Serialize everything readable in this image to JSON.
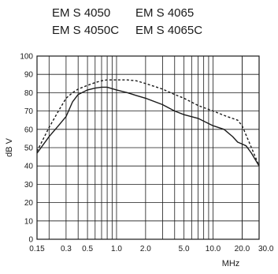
{
  "models": [
    "EM S 4050",
    "EM S 4065",
    "EM S 4050C",
    "EM S 4065C"
  ],
  "chart_data": {
    "type": "line",
    "x_scale": "log",
    "xlim": [
      0.15,
      30.0
    ],
    "ylim": [
      0,
      100
    ],
    "xlabel": "MHz",
    "ylabel": "dB  V",
    "x_ticks": [
      0.15,
      0.3,
      0.5,
      1.0,
      2.0,
      5.0,
      10.0,
      20.0,
      30.0
    ],
    "x_tick_labels": [
      "0.15",
      "0.3",
      "0.5",
      "1.0",
      "2.0",
      "5.0",
      "10.0",
      "20.0",
      "30.0"
    ],
    "y_ticks": [
      0,
      10,
      20,
      30,
      40,
      50,
      60,
      70,
      80,
      90,
      100
    ],
    "y_tick_labels": [
      "0",
      "10",
      "20",
      "30",
      "40",
      "50",
      "60",
      "70",
      "80",
      "90",
      "100"
    ],
    "grid": true,
    "series": [
      {
        "style": "dashed",
        "color": "#1a1a1a",
        "x": [
          0.15,
          0.2,
          0.25,
          0.3,
          0.35,
          0.4,
          0.5,
          0.6,
          0.7,
          0.8,
          1.0,
          1.3,
          1.6,
          2.0,
          3.0,
          4.0,
          5.0,
          7.0,
          10.0,
          14.0,
          18.0,
          20.0,
          25.0,
          30.0
        ],
        "y": [
          48,
          61,
          70,
          77,
          80,
          82,
          84,
          85.5,
          86.5,
          87,
          87,
          87,
          86.5,
          85,
          82,
          79,
          77,
          73,
          70,
          67,
          65,
          62,
          50,
          40
        ]
      },
      {
        "style": "solid",
        "color": "#1a1a1a",
        "x": [
          0.15,
          0.2,
          0.25,
          0.3,
          0.35,
          0.4,
          0.5,
          0.6,
          0.7,
          0.8,
          1.0,
          1.3,
          1.6,
          2.0,
          3.0,
          4.0,
          5.0,
          7.0,
          10.0,
          13.0,
          16.0,
          18.0,
          20.0,
          22.0,
          25.0,
          30.0
        ],
        "y": [
          47,
          56,
          62,
          67,
          75,
          79,
          81.5,
          82.5,
          83,
          83,
          81.5,
          80,
          78.5,
          77,
          73.5,
          70,
          68,
          66,
          62,
          60,
          56,
          53,
          52,
          51,
          47,
          40
        ]
      }
    ]
  }
}
